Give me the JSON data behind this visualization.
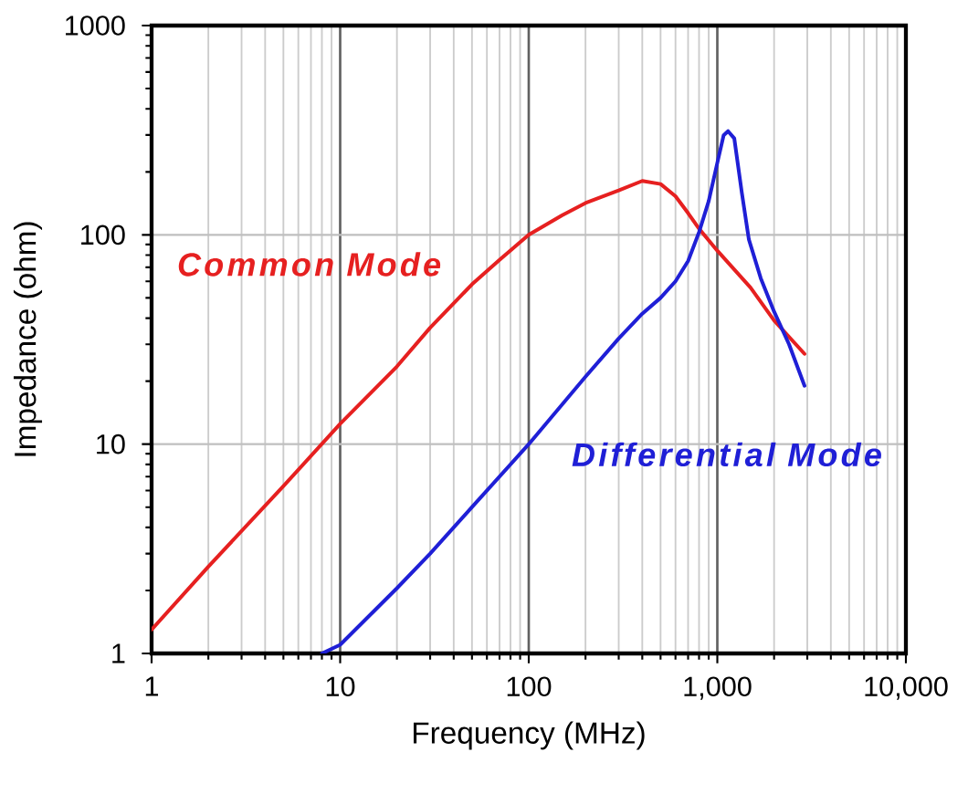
{
  "chart_data": {
    "type": "line",
    "xlabel": "Frequency (MHz)",
    "ylabel": "Impedance (ohm)",
    "log": "xy",
    "grid": true,
    "xlim": [
      1,
      10000
    ],
    "ylim": [
      1,
      1000
    ],
    "xticks": [
      1,
      10,
      100,
      {
        "value": 1000,
        "label": "1,000"
      },
      {
        "value": 10000,
        "label": "10,000"
      }
    ],
    "yticks": [
      1,
      10,
      100,
      1000
    ],
    "series": [
      {
        "name": "Common Mode",
        "color": "#e62020",
        "x": [
          1,
          2,
          5,
          10,
          20,
          30,
          50,
          70,
          100,
          150,
          200,
          300,
          400,
          500,
          600,
          700,
          800,
          1000,
          1500,
          2000,
          2900
        ],
        "values": [
          1.3,
          2.6,
          6.3,
          12.5,
          23.5,
          36,
          58,
          76,
          100,
          124,
          142,
          163,
          181,
          175,
          153,
          127,
          107,
          84,
          56,
          39,
          27
        ]
      },
      {
        "name": "Differential Mode",
        "color": "#1f1fd6",
        "x": [
          8,
          10,
          20,
          30,
          50,
          100,
          200,
          300,
          400,
          500,
          600,
          700,
          800,
          900,
          1000,
          1080,
          1140,
          1230,
          1350,
          1470,
          1700,
          2000,
          2400,
          2900
        ],
        "values": [
          1,
          1.1,
          2.05,
          3.0,
          5.0,
          10,
          21,
          32,
          42,
          50,
          60,
          75,
          103,
          145,
          221,
          299,
          313,
          289,
          158,
          95,
          62,
          43,
          30,
          19
        ]
      }
    ]
  }
}
